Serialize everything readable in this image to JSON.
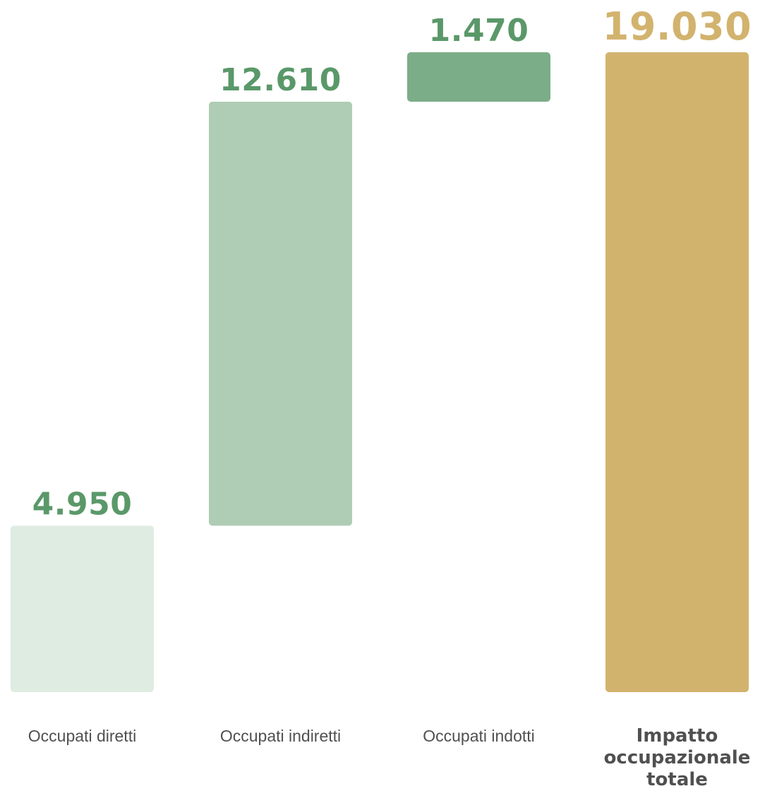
{
  "chart_data": {
    "type": "bar",
    "subtype": "waterfall",
    "categories": [
      [
        "Occupati diretti"
      ],
      [
        "Occupati indiretti"
      ],
      [
        "Occupati indotti"
      ],
      [
        "Impatto",
        "occupazionale",
        "totale"
      ]
    ],
    "values": [
      4950,
      12610,
      1470,
      19030
    ],
    "value_labels": [
      "4.950",
      "12.610",
      "1.470",
      "19.030"
    ],
    "is_total": [
      false,
      false,
      false,
      true
    ],
    "ylim": [
      0,
      19030
    ],
    "grid": false,
    "colors": [
      "#dfece2",
      "#afcdb5",
      "#7bad88",
      "#d2b36e"
    ],
    "value_label_colors": [
      "#5a9869",
      "#5a9869",
      "#5a9869",
      "#d2b36e"
    ],
    "category_label_colors": [
      "#505050",
      "#505050",
      "#505050",
      "#d2b36e"
    ]
  }
}
